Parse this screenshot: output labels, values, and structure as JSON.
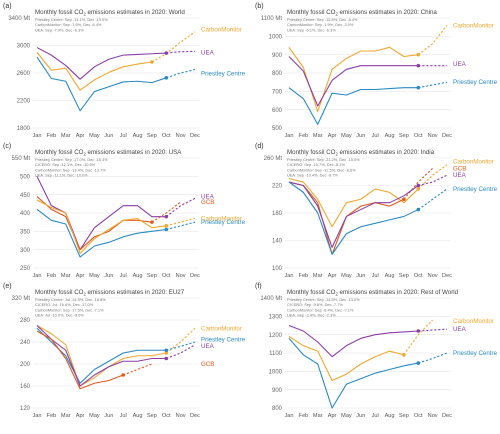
{
  "figure": {
    "months": [
      "Jan",
      "Feb",
      "Mar",
      "Apr",
      "May",
      "Jun",
      "Jul",
      "Aug",
      "Sep",
      "Oct",
      "Nov",
      "Dec"
    ]
  },
  "chart_data": [
    {
      "panel": "(a)",
      "type": "line",
      "title_main": "Monthly fossil CO",
      "title_sub": "2",
      "title_rest": " emissions estimates in 2020: World",
      "notes": [
        "Priestley Centre: Sep -14.1%, Dec -13.0%",
        "CarbonMonitor: Sep -7.6%, Dec -6.4%",
        "UEA: Sep -7.9%, Dec -6.3%"
      ],
      "ylim": [
        1800,
        3400
      ],
      "yticks": [
        1800,
        2200,
        2600,
        3000,
        3400
      ],
      "ytick_labels": [
        "1800",
        "2200",
        "2600",
        "3000",
        "3400 Mt"
      ],
      "series": [
        {
          "name": "CarbonMonitor",
          "color": "#f0a830",
          "values": [
            2900,
            2640,
            2670,
            2350,
            2500,
            2610,
            2690,
            2730,
            2760
          ],
          "projection": [
            2760,
            2880,
            3050,
            3200
          ],
          "label_value": 3230
        },
        {
          "name": "UEA",
          "color": "#8b3fa8",
          "values": [
            2970,
            2860,
            2710,
            2510,
            2690,
            2800,
            2860,
            2870,
            2880,
            2890
          ],
          "projection": [
            2890,
            2910,
            2915
          ],
          "label_value": 2900
        },
        {
          "name": "Priestley Centre",
          "color": "#2a8ac4",
          "values": [
            2830,
            2520,
            2480,
            2050,
            2330,
            2400,
            2470,
            2480,
            2460,
            2530
          ],
          "projection": [
            2530,
            2600,
            2650
          ],
          "label_value": 2590
        }
      ]
    },
    {
      "panel": "(b)",
      "type": "line",
      "title_main": "Monthly fossil CO",
      "title_sub": "2",
      "title_rest": " emissions estimates in 2020: China",
      "notes": [
        "Priestley Centre: Sep -15.8%, Dec -8.4%",
        "CarbonMonitor: Sep -1.9%, Dec -3.0%",
        "UEA: Sep -6.1%, Dec -6.3%"
      ],
      "ylim": [
        500,
        1100
      ],
      "yticks": [
        500,
        600,
        700,
        800,
        900,
        1000,
        1100
      ],
      "ytick_labels": [
        "500",
        "600",
        "700",
        "800",
        "900",
        "1000",
        "1100 Mt"
      ],
      "series": [
        {
          "name": "CarbonMonitor",
          "color": "#f0a830",
          "values": [
            940,
            830,
            590,
            820,
            880,
            920,
            920,
            940,
            890,
            900
          ],
          "projection": [
            900,
            960,
            1060
          ],
          "label_value": 1060
        },
        {
          "name": "UEA",
          "color": "#8b3fa8",
          "values": [
            890,
            810,
            620,
            760,
            820,
            840,
            840,
            840,
            840,
            840
          ],
          "projection": [
            840,
            840,
            840
          ],
          "label_value": 850
        },
        {
          "name": "Priestley Centre",
          "color": "#2a8ac4",
          "values": [
            720,
            660,
            520,
            690,
            680,
            710,
            710,
            715,
            720,
            720
          ],
          "projection": [
            720,
            735,
            750
          ],
          "label_value": 750
        }
      ]
    },
    {
      "panel": "(c)",
      "type": "line",
      "title_main": "Monthly fossil CO",
      "title_sub": "2",
      "title_rest": " emissions estimates in 2020: USA",
      "notes": [
        "Priestley Centre: Sep -17.0%, Dec -16.4%",
        "CICERO: Sep -12.1%, Dec -10.6%",
        "CarbonMonitor: Sep -13.4%, Dec -13.7%",
        "UEA: Sep -11.1%, Dec -10.0%"
      ],
      "ylim": [
        250,
        550
      ],
      "yticks": [
        250,
        300,
        350,
        400,
        450,
        500,
        550
      ],
      "ytick_labels": [
        "250",
        "300",
        "350",
        "400",
        "450",
        "500",
        "550 Mt"
      ],
      "series": [
        {
          "name": "UEA",
          "color": "#8b3fa8",
          "values": [
            500,
            420,
            400,
            300,
            360,
            390,
            420,
            420,
            390,
            390
          ],
          "projection": [
            390,
            420,
            440
          ],
          "label_value": 445
        },
        {
          "name": "GCB",
          "color": "#e05a1e",
          "values": [
            445,
            410,
            390,
            300,
            335,
            350,
            380,
            380,
            375
          ],
          "projection": [
            375,
            400,
            430
          ],
          "label_value": 430
        },
        {
          "name": "CarbonMonitor",
          "color": "#f0a830",
          "values": [
            435,
            415,
            400,
            290,
            330,
            355,
            380,
            385,
            360,
            365
          ],
          "projection": [
            365,
            375,
            385
          ],
          "label_value": 385
        },
        {
          "name": "Priestley Centre",
          "color": "#2a8ac4",
          "values": [
            410,
            380,
            370,
            280,
            310,
            320,
            335,
            345,
            350,
            355
          ],
          "projection": [
            355,
            365,
            375
          ],
          "label_value": 375
        }
      ]
    },
    {
      "panel": "(d)",
      "type": "line",
      "title_main": "Monthly fossil CO",
      "title_sub": "2",
      "title_rest": " emissions estimates in 2020: India",
      "notes": [
        "Priestley Centre: Sep -21.2%, Dec -15.0%",
        "CICERO: Sep -10.7%, Dec -8.1%",
        "CarbonMonitor: Sep -12.5%, Dec -8.6%",
        "UEA: Sep -10.4%, Dec -8.7%"
      ],
      "ylim": [
        100,
        260
      ],
      "yticks": [
        100,
        140,
        180,
        220,
        260
      ],
      "ytick_labels": [
        "100",
        "140",
        "180",
        "220",
        "260 Mt"
      ],
      "series": [
        {
          "name": "CarbonMonitor",
          "color": "#f0a830",
          "values": [
            230,
            225,
            200,
            160,
            195,
            200,
            215,
            210,
            195,
            215
          ],
          "projection": [
            215,
            235,
            250
          ],
          "label_value": 255
        },
        {
          "name": "GCB",
          "color": "#e05a1e",
          "values": [
            225,
            220,
            195,
            120,
            175,
            190,
            195,
            190,
            200
          ],
          "projection": [
            200,
            225,
            245
          ],
          "label_value": 245
        },
        {
          "name": "UEA",
          "color": "#8b3fa8",
          "values": [
            225,
            220,
            190,
            130,
            175,
            185,
            195,
            195,
            205,
            220
          ],
          "projection": [
            220,
            225,
            235
          ],
          "label_value": 235
        },
        {
          "name": "Priestley Centre",
          "color": "#2a8ac4",
          "values": [
            225,
            210,
            180,
            120,
            150,
            160,
            165,
            170,
            175,
            185
          ],
          "projection": [
            185,
            200,
            215
          ],
          "label_value": 215
        }
      ]
    },
    {
      "panel": "(e)",
      "type": "line",
      "title_main": "Monthly fossil CO",
      "title_sub": "2",
      "title_rest": " emissions estimates in 2020: EU27",
      "notes": [
        "Priestley Centre: Jul -14.5%, Dec -16.8%",
        "CICERO: Jul -16.6%, Dec -17.0%",
        "CarbonMonitor: Sep -17.5%, Dec -7.1%",
        "UEA: Jul -10.0%, Dec -8.6%"
      ],
      "ylim": [
        120,
        320
      ],
      "yticks": [
        120,
        160,
        200,
        240,
        280,
        320
      ],
      "ytick_labels": [
        "120",
        "160",
        "200",
        "240",
        "280",
        "320 Mt"
      ],
      "series": [
        {
          "name": "CarbonMonitor",
          "color": "#f0a830",
          "values": [
            270,
            255,
            235,
            160,
            175,
            195,
            210,
            215,
            215,
            220
          ],
          "projection": [
            220,
            240,
            265
          ],
          "label_value": 265
        },
        {
          "name": "Priestley Centre",
          "color": "#2a8ac4",
          "values": [
            265,
            240,
            215,
            165,
            190,
            205,
            220,
            225,
            225,
            225
          ],
          "projection": [
            225,
            232,
            240
          ],
          "label_value": 245
        },
        {
          "name": "UEA",
          "color": "#8b3fa8",
          "values": [
            270,
            245,
            225,
            160,
            180,
            195,
            205,
            205,
            210,
            210
          ],
          "projection": [
            210,
            220,
            235
          ],
          "label_value": 233
        },
        {
          "name": "GCB",
          "color": "#e05a1e",
          "values": [
            260,
            245,
            210,
            155,
            165,
            170,
            180
          ],
          "projection": [
            180,
            190,
            200
          ],
          "label_value": 200
        }
      ]
    },
    {
      "panel": "(f)",
      "type": "line",
      "title_main": "Monthly fossil CO",
      "title_sub": "2",
      "title_rest": " emissions estimates in 2020: Rest of World",
      "notes": [
        "Priestley Centre: Sep -14.5%, Dec -13.0%",
        "CICERO: Sep -9.6%, Dec -7.7%",
        "CarbonMonitor: Sep -8.4%, Dec -7.1%",
        "UEA: Sep -2.4%, Dec -2.3%"
      ],
      "ylim": [
        800,
        1400
      ],
      "yticks": [
        800,
        900,
        1000,
        1100,
        1200,
        1300,
        1400
      ],
      "ytick_labels": [
        "800",
        "900",
        "1000",
        "1100",
        "1200",
        "1300",
        "1400 Mt"
      ],
      "series": [
        {
          "name": "CarbonMonitor",
          "color": "#f0a830",
          "values": [
            1190,
            1140,
            1110,
            950,
            985,
            1040,
            1080,
            1110,
            1090
          ],
          "projection": [
            1090,
            1200,
            1280
          ],
          "label_value": 1275
        },
        {
          "name": "UEA",
          "color": "#8b3fa8",
          "values": [
            1250,
            1220,
            1160,
            1080,
            1140,
            1180,
            1200,
            1210,
            1215,
            1220
          ],
          "projection": [
            1220,
            1225,
            1230
          ],
          "label_value": 1230
        },
        {
          "name": "Priestley Centre",
          "color": "#2a8ac4",
          "values": [
            1180,
            1090,
            1040,
            800,
            930,
            960,
            990,
            1010,
            1030,
            1045
          ],
          "projection": [
            1045,
            1070,
            1100
          ],
          "label_value": 1100
        }
      ]
    }
  ]
}
